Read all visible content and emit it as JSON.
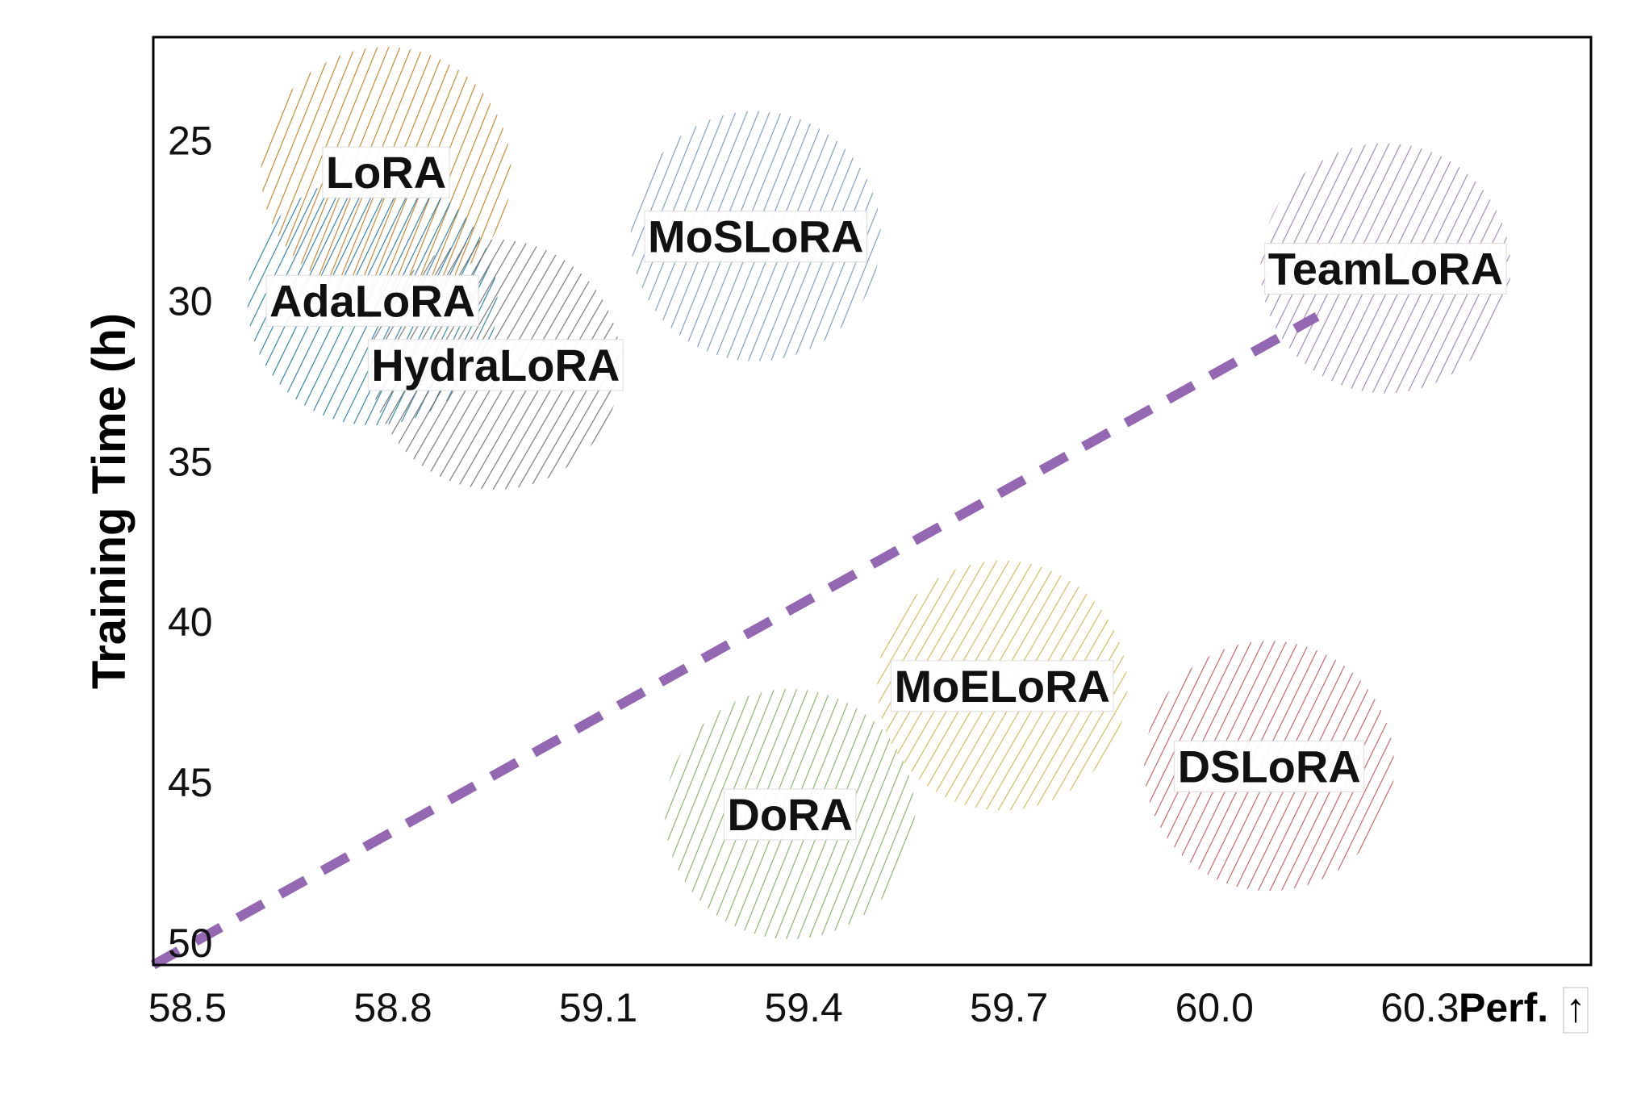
{
  "chart_data": {
    "type": "scatter",
    "title": "",
    "xlabel": "Perf.",
    "xlabel_arrow": "↑",
    "ylabel": "Training Time (h)",
    "xlim": [
      58.45,
      60.55
    ],
    "ylim": [
      50.7,
      21.8
    ],
    "y_inverted": true,
    "grid": false,
    "x_ticks": [
      "58.5",
      "58.8",
      "59.1",
      "59.4",
      "59.7",
      "60.0",
      "60.3"
    ],
    "y_ticks": [
      "25",
      "30",
      "35",
      "40",
      "45",
      "50"
    ],
    "points": [
      {
        "name": "LoRA",
        "x": 58.79,
        "y": 26.0,
        "color": "#c27a1c"
      },
      {
        "name": "AdaLoRA",
        "x": 58.77,
        "y": 30.0,
        "color": "#1f77a4"
      },
      {
        "name": "HydraLoRA",
        "x": 58.95,
        "y": 32.0,
        "color": "#6b6b6b"
      },
      {
        "name": "MoSLoRA",
        "x": 59.33,
        "y": 28.0,
        "color": "#7393c2"
      },
      {
        "name": "TeamLoRA",
        "x": 60.25,
        "y": 29.0,
        "color": "#9c7cb0"
      },
      {
        "name": "MoELoRA",
        "x": 59.69,
        "y": 42.0,
        "color": "#d4b34a"
      },
      {
        "name": "DoRA",
        "x": 59.38,
        "y": 46.0,
        "color": "#7fae5f"
      },
      {
        "name": "DSLoRA",
        "x": 60.08,
        "y": 44.5,
        "color": "#c15656"
      }
    ],
    "trend_line": {
      "from": [
        58.45,
        50.7
      ],
      "to": [
        60.15,
        30.5
      ],
      "color": "#9467b3",
      "style": "dashed"
    }
  }
}
